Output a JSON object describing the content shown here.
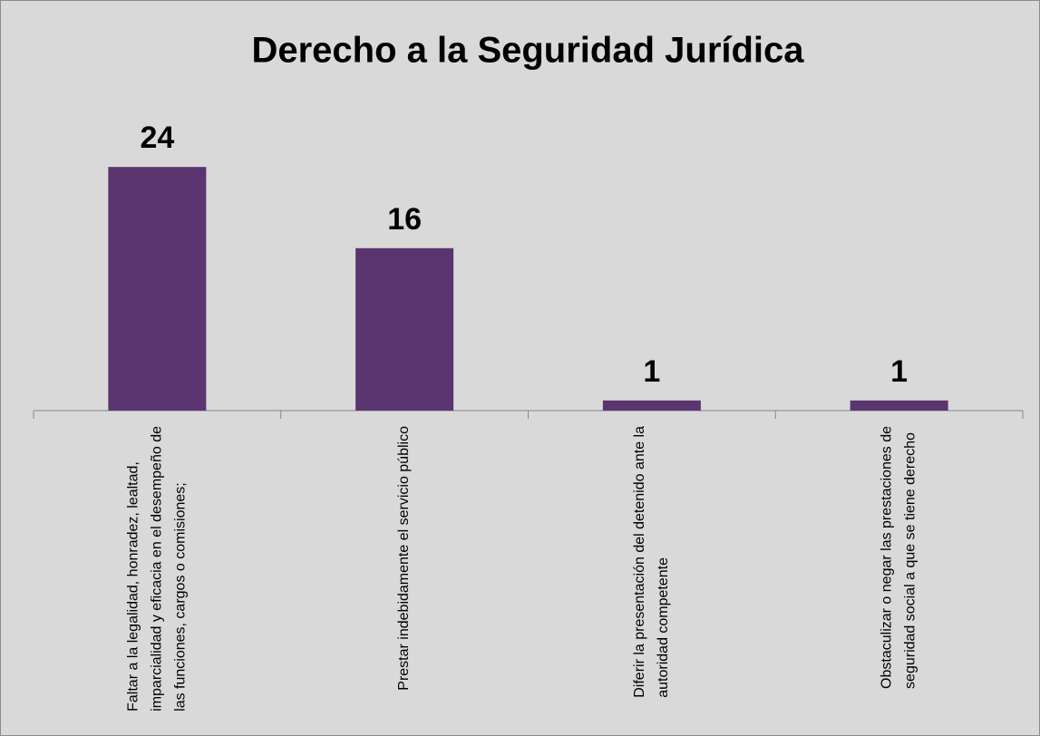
{
  "chart_data": {
    "type": "bar",
    "title": "Derecho a la Seguridad Jurídica",
    "categories": [
      "Faltar a la legalidad, honradez, lealtad, imparcialidad y eficacia en el desempeño de las funciones, cargos o comisiones;",
      "Prestar indebidamente el servicio público",
      "Diferir la presentación del detenido ante la autoridad competente",
      "Obstaculizar o negar las prestaciones de seguridad social a que se tiene derecho"
    ],
    "values": [
      24,
      16,
      1,
      1
    ],
    "color": "#5b3570",
    "ylim": [
      0,
      30
    ]
  }
}
